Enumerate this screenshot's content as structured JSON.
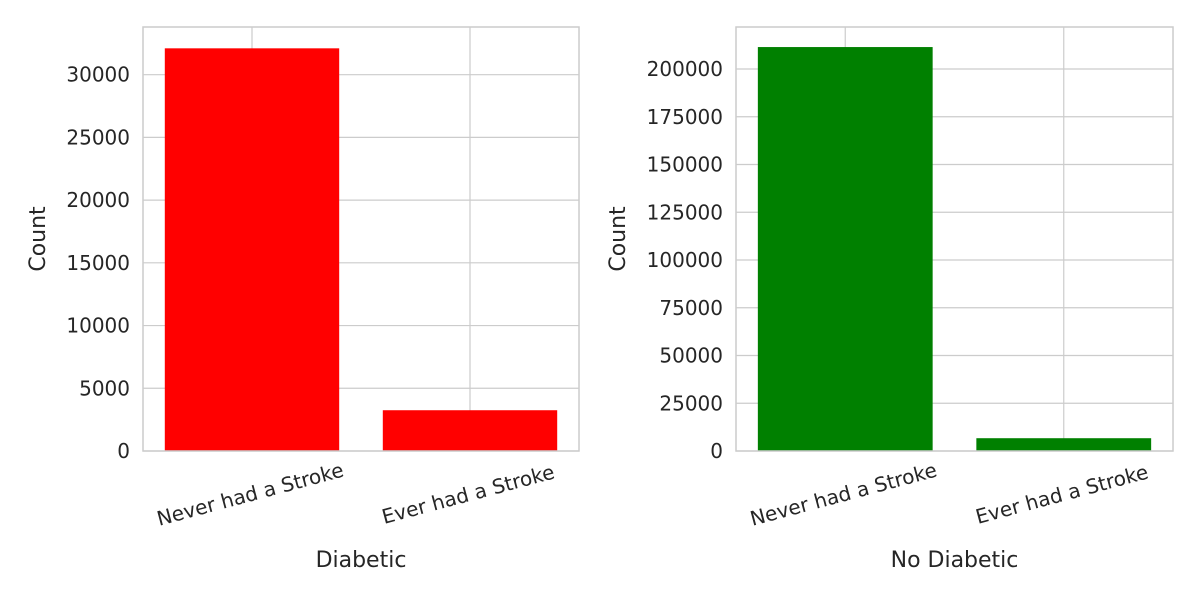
{
  "chart_data": [
    {
      "type": "bar",
      "categories": [
        "Never had a Stroke",
        "Ever had a Stroke"
      ],
      "values": [
        32100,
        3250
      ],
      "xlabel": "Diabetic",
      "ylabel": "Count",
      "ylim": [
        0,
        33800
      ],
      "yticks": [
        0,
        5000,
        10000,
        15000,
        20000,
        25000,
        30000
      ],
      "color": "#ff0000",
      "grid": true
    },
    {
      "type": "bar",
      "categories": [
        "Never had a Stroke",
        "Ever had a Stroke"
      ],
      "values": [
        211500,
        6700
      ],
      "xlabel": "No Diabetic",
      "ylabel": "Count",
      "ylim": [
        0,
        222000
      ],
      "yticks": [
        0,
        25000,
        50000,
        75000,
        100000,
        125000,
        150000,
        175000,
        200000
      ],
      "color": "#008000",
      "grid": true
    }
  ]
}
